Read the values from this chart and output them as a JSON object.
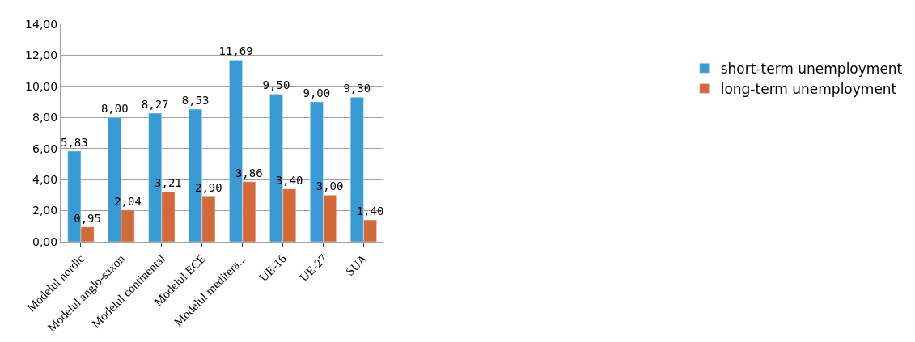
{
  "chart_data": {
    "type": "bar",
    "categories": [
      "Modelul nordic",
      "Modelul anglo-saxon",
      "Modelul continental",
      "Modelul ECE",
      "Modelul meditera...",
      "UE-16",
      "UE-27",
      "SUA"
    ],
    "series": [
      {
        "name": "short-term unemployment",
        "color": "#3a9ad4",
        "values": [
          5.83,
          8.0,
          8.27,
          8.53,
          11.69,
          9.5,
          9.0,
          9.3
        ],
        "value_labels": [
          "5,83",
          "8,00",
          "8,27",
          "8,53",
          "11,69",
          "9,50",
          "9,00",
          "9,30"
        ]
      },
      {
        "name": "long-term unemployment",
        "color": "#d2693a",
        "values": [
          0.95,
          2.04,
          3.21,
          2.9,
          3.86,
          3.4,
          3.0,
          1.4
        ],
        "value_labels": [
          "0,95",
          "2,04",
          "3,21",
          "2,90",
          "3,86",
          "3,40",
          "3,00",
          "1,40"
        ]
      }
    ],
    "ylim": [
      0,
      14
    ],
    "yticks": [
      {
        "value": 0,
        "label": "0,00"
      },
      {
        "value": 2,
        "label": "2,00"
      },
      {
        "value": 4,
        "label": "4,00"
      },
      {
        "value": 6,
        "label": "6,00"
      },
      {
        "value": 8,
        "label": "8,00"
      },
      {
        "value": 10,
        "label": "10,00"
      },
      {
        "value": 12,
        "label": "12,00"
      },
      {
        "value": 14,
        "label": "14,00"
      }
    ],
    "grid": "y",
    "legend": "right"
  }
}
